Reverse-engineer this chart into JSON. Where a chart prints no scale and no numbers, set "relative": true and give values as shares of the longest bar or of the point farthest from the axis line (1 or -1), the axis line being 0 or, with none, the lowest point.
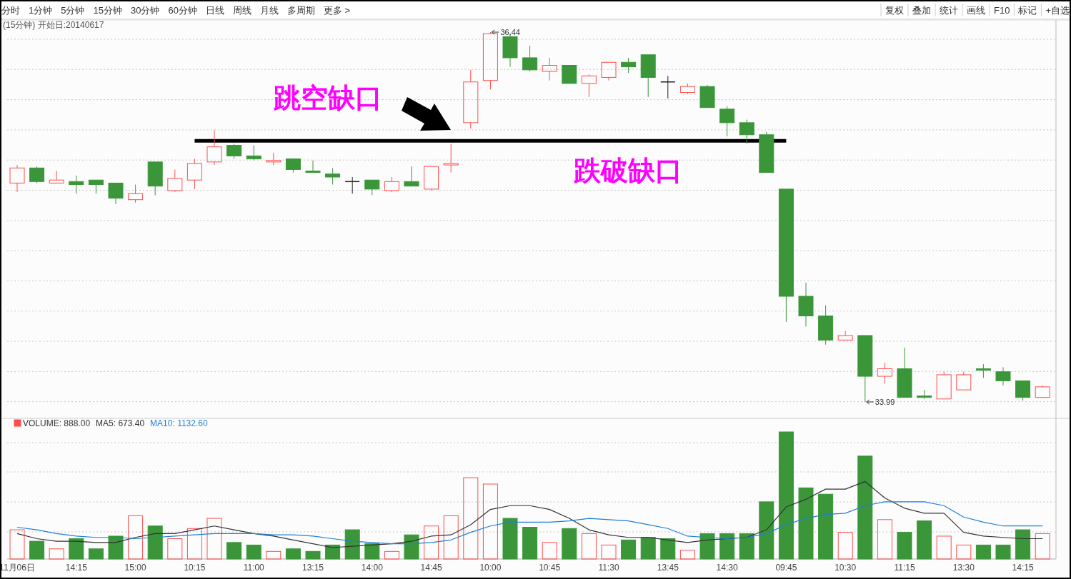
{
  "chart_data": [
    {
      "type": "other",
      "annotations": [
        "分时",
        "1分钟",
        "5分钟",
        "15分钟",
        "30分钟",
        "60分钟",
        "日线",
        "周线",
        "月线",
        "多周期",
        "更多 >",
        "复权",
        "叠加",
        "统计",
        "画线",
        "F10",
        "标记",
        "+自选"
      ]
    },
    {
      "type": "candlestick",
      "title": "(15分钟) 开始日:20140617",
      "grid": true,
      "tick_labels": false,
      "categories": [
        null,
        null,
        null,
        null,
        null,
        null,
        null,
        null,
        null,
        null,
        null,
        null,
        null,
        null,
        null,
        null,
        null,
        null,
        null,
        null,
        null,
        null,
        null,
        null,
        null,
        null,
        null,
        null,
        null,
        null,
        null,
        null,
        null,
        null,
        null,
        null,
        null,
        null,
        null,
        null,
        null,
        null,
        null,
        null,
        null,
        null,
        null,
        null,
        null,
        null,
        null,
        null,
        null
      ],
      "ohlc": [
        [
          35.44,
          35.56,
          35.38,
          35.54
        ],
        [
          35.54,
          35.55,
          35.44,
          35.45
        ],
        [
          35.44,
          35.52,
          35.44,
          35.46
        ],
        [
          35.45,
          35.49,
          35.37,
          35.43
        ],
        [
          35.46,
          35.46,
          35.37,
          35.43
        ],
        [
          35.44,
          35.44,
          35.3,
          35.34
        ],
        [
          35.33,
          35.43,
          35.31,
          35.37
        ],
        [
          35.58,
          35.58,
          35.36,
          35.42
        ],
        [
          35.39,
          35.53,
          35.38,
          35.47
        ],
        [
          35.46,
          35.6,
          35.4,
          35.57
        ],
        [
          35.58,
          35.79,
          35.56,
          35.68
        ],
        [
          35.69,
          35.7,
          35.6,
          35.62
        ],
        [
          35.62,
          35.69,
          35.59,
          35.6
        ],
        [
          35.58,
          35.64,
          35.56,
          35.59
        ],
        [
          35.6,
          35.6,
          35.51,
          35.53
        ],
        [
          35.52,
          35.59,
          35.51,
          35.51
        ],
        [
          35.5,
          35.54,
          35.43,
          35.48
        ],
        [
          35.45,
          35.48,
          35.37,
          35.45
        ],
        [
          35.46,
          35.46,
          35.36,
          35.4
        ],
        [
          35.39,
          35.48,
          35.38,
          35.45
        ],
        [
          35.45,
          35.55,
          35.42,
          35.42
        ],
        [
          35.4,
          35.55,
          35.39,
          35.55
        ],
        [
          35.56,
          35.7,
          35.51,
          35.57
        ],
        [
          35.84,
          36.19,
          35.8,
          36.11
        ],
        [
          36.12,
          36.44,
          36.06,
          36.43
        ],
        [
          36.41,
          36.43,
          36.21,
          36.27
        ],
        [
          36.27,
          36.35,
          36.18,
          36.19
        ],
        [
          36.18,
          36.27,
          36.12,
          36.22
        ],
        [
          36.22,
          36.22,
          36.1,
          36.1
        ],
        [
          36.1,
          36.16,
          36.01,
          36.15
        ],
        [
          36.14,
          36.24,
          36.12,
          36.24
        ],
        [
          36.24,
          36.27,
          36.17,
          36.21
        ],
        [
          36.29,
          36.29,
          36.01,
          36.14
        ],
        [
          36.11,
          36.15,
          36.0,
          36.11
        ],
        [
          36.04,
          36.1,
          36.03,
          36.08
        ],
        [
          36.08,
          36.09,
          35.94,
          35.94
        ],
        [
          35.93,
          35.95,
          35.75,
          35.84
        ],
        [
          35.84,
          35.86,
          35.7,
          35.76
        ],
        [
          35.76,
          35.78,
          35.51,
          35.51
        ],
        [
          35.4,
          35.4,
          34.52,
          34.69
        ],
        [
          34.69,
          34.78,
          34.49,
          34.56
        ],
        [
          34.56,
          34.63,
          34.37,
          34.4
        ],
        [
          34.4,
          34.46,
          34.4,
          34.43
        ],
        [
          34.43,
          34.43,
          33.99,
          34.16
        ],
        [
          34.16,
          34.25,
          34.11,
          34.21
        ],
        [
          34.21,
          34.35,
          34.02,
          34.02
        ],
        [
          34.03,
          34.07,
          34.01,
          34.02
        ],
        [
          34.01,
          34.19,
          34.01,
          34.17
        ],
        [
          34.07,
          34.19,
          34.07,
          34.17
        ],
        [
          34.21,
          34.24,
          34.15,
          34.2
        ],
        [
          34.19,
          34.22,
          34.1,
          34.13
        ],
        [
          34.13,
          34.13,
          34.0,
          34.02
        ],
        [
          34.02,
          34.1,
          34.02,
          34.09
        ]
      ],
      "ref_lines": [
        {
          "axis": "y",
          "value": 35.72,
          "color": "#000000"
        }
      ],
      "annotations": [
        "跳空缺口",
        "跌破缺口",
        {
          "text": "36.44",
          "y": 36.44
        },
        "33.99"
      ]
    },
    {
      "type": "bar",
      "relative": true,
      "grid": true,
      "tick_labels": "x",
      "legend": "top left",
      "categories": [
        "11月06日",
        null,
        null,
        "14:15",
        null,
        null,
        "15:00",
        null,
        null,
        "10:15",
        null,
        null,
        "11:00",
        null,
        null,
        "13:15",
        null,
        null,
        "14:00",
        null,
        null,
        "14:45",
        null,
        null,
        "10:00",
        null,
        null,
        "10:45",
        null,
        null,
        "11:30",
        null,
        null,
        "13:45",
        null,
        null,
        "14:30",
        null,
        null,
        "09:45",
        null,
        null,
        "10:30",
        null,
        null,
        "11:15",
        null,
        null,
        "13:30",
        null,
        null,
        "14:15",
        null
      ],
      "series": [
        {
          "name": "VOLUME: 888.00",
          "type": "bar",
          "colors": [
            "#ff4d4d",
            "#3a9639",
            "#ff4d4d",
            "#3a9639",
            "#3a9639",
            "#3a9639",
            "#ff4d4d",
            "#3a9639",
            "#ff4d4d",
            "#ff4d4d",
            "#ff4d4d",
            "#3a9639",
            "#3a9639",
            "#ff4d4d",
            "#3a9639",
            "#3a9639",
            "#3a9639",
            "#3a9639",
            "#3a9639",
            "#ff4d4d",
            "#3a9639",
            "#ff4d4d",
            "#ff4d4d",
            "#ff4d4d",
            "#ff4d4d",
            "#3a9639",
            "#3a9639",
            "#ff4d4d",
            "#3a9639",
            "#ff4d4d",
            "#ff4d4d",
            "#3a9639",
            "#3a9639",
            "#3a9639",
            "#ff4d4d",
            "#3a9639",
            "#3a9639",
            "#3a9639",
            "#3a9639",
            "#3a9639",
            "#3a9639",
            "#3a9639",
            "#ff4d4d",
            "#3a9639",
            "#ff4d4d",
            "#3a9639",
            "#3a9639",
            "#ff4d4d",
            "#ff4d4d",
            "#3a9639",
            "#3a9639",
            "#3a9639",
            "#ff4d4d"
          ],
          "values": [
            0.23,
            0.14,
            0.08,
            0.16,
            0.08,
            0.18,
            0.34,
            0.26,
            0.16,
            0.24,
            0.32,
            0.13,
            0.11,
            0.06,
            0.08,
            0.06,
            0.11,
            0.23,
            0.12,
            0.06,
            0.19,
            0.26,
            0.34,
            0.64,
            0.59,
            0.32,
            0.25,
            0.13,
            0.24,
            0.2,
            0.11,
            0.15,
            0.17,
            0.16,
            0.07,
            0.2,
            0.2,
            0.2,
            0.45,
            1,
            0.56,
            0.51,
            0.21,
            0.81,
            0.31,
            0.21,
            0.3,
            0.18,
            0.11,
            0.11,
            0.11,
            0.23,
            0.2
          ]
        },
        {
          "name": "MA5: 673.40",
          "type": "line",
          "color": "#333333",
          "values": [
            0.2,
            0.16,
            0.14,
            0.14,
            0.13,
            0.13,
            0.17,
            0.2,
            0.2,
            0.23,
            0.26,
            0.23,
            0.2,
            0.18,
            0.15,
            0.12,
            0.09,
            0.1,
            0.11,
            0.12,
            0.14,
            0.18,
            0.19,
            0.27,
            0.39,
            0.42,
            0.42,
            0.39,
            0.32,
            0.23,
            0.19,
            0.17,
            0.17,
            0.15,
            0.13,
            0.15,
            0.16,
            0.17,
            0.23,
            0.41,
            0.47,
            0.55,
            0.55,
            0.61,
            0.48,
            0.4,
            0.36,
            0.36,
            0.21,
            0.18,
            0.17,
            0.16,
            0.16
          ]
        },
        {
          "name": "MA10: 1132.60",
          "type": "line",
          "color": "#1e7fd6",
          "values": [
            0.25,
            0.23,
            0.2,
            0.18,
            0.17,
            0.17,
            0.16,
            0.17,
            0.18,
            0.19,
            0.2,
            0.2,
            0.2,
            0.19,
            0.19,
            0.18,
            0.16,
            0.14,
            0.13,
            0.12,
            0.12,
            0.13,
            0.15,
            0.21,
            0.26,
            0.29,
            0.29,
            0.29,
            0.3,
            0.32,
            0.31,
            0.3,
            0.27,
            0.24,
            0.18,
            0.17,
            0.16,
            0.17,
            0.2,
            0.27,
            0.32,
            0.35,
            0.36,
            0.42,
            0.45,
            0.45,
            0.45,
            0.42,
            0.33,
            0.29,
            0.26,
            0.26,
            0.26
          ]
        }
      ]
    }
  ]
}
